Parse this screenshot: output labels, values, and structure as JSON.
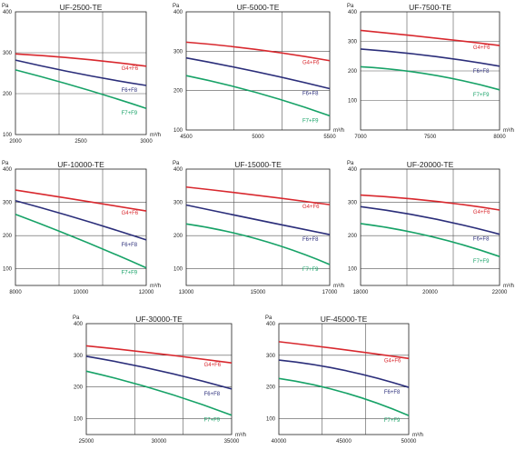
{
  "chart_data": [
    {
      "type": "line",
      "title": "UF-2500-TE",
      "ylabel": "Pa",
      "xlabel": "m³/h",
      "xlim": [
        2000,
        3000
      ],
      "ylim": [
        100,
        400
      ],
      "xticks": [
        2000,
        2500,
        3000
      ],
      "yticks": [
        100,
        200,
        300,
        400
      ],
      "grid": true,
      "series": [
        {
          "name": "G4+F6",
          "color": "#d8282e",
          "x": [
            2000,
            2500,
            3000
          ],
          "y": [
            297,
            285,
            267
          ]
        },
        {
          "name": "F6+F8",
          "color": "#2b2e7a",
          "x": [
            2000,
            2500,
            3000
          ],
          "y": [
            282,
            248,
            220
          ]
        },
        {
          "name": "F7+F9",
          "color": "#17a267",
          "x": [
            2000,
            2500,
            3000
          ],
          "y": [
            258,
            214,
            164
          ]
        }
      ]
    },
    {
      "type": "line",
      "title": "UF-5000-TE",
      "ylabel": "Pa",
      "xlabel": "m³/h",
      "xlim": [
        4500,
        5500
      ],
      "ylim": [
        100,
        400
      ],
      "xticks": [
        4500,
        5000,
        5500
      ],
      "yticks": [
        100,
        200,
        300,
        400
      ],
      "grid": true,
      "series": [
        {
          "name": "G4+F6",
          "color": "#d8282e",
          "x": [
            4500,
            5000,
            5500
          ],
          "y": [
            323,
            304,
            276
          ]
        },
        {
          "name": "F6+F8",
          "color": "#2b2e7a",
          "x": [
            4500,
            5000,
            5500
          ],
          "y": [
            283,
            247,
            205
          ]
        },
        {
          "name": "F7+F9",
          "color": "#17a267",
          "x": [
            4500,
            5000,
            5500
          ],
          "y": [
            238,
            194,
            136
          ]
        }
      ]
    },
    {
      "type": "line",
      "title": "UF-7500-TE",
      "ylabel": "Pa",
      "xlabel": "m³/h",
      "xlim": [
        7000,
        8000
      ],
      "ylim": [
        0,
        400
      ],
      "xticks": [
        7000,
        7500,
        8000
      ],
      "yticks": [
        100,
        200,
        300,
        400
      ],
      "grid": true,
      "series": [
        {
          "name": "G4+F6",
          "color": "#d8282e",
          "x": [
            7000,
            7500,
            8000
          ],
          "y": [
            337,
            313,
            286
          ]
        },
        {
          "name": "F6+F8",
          "color": "#2b2e7a",
          "x": [
            7000,
            7500,
            8000
          ],
          "y": [
            274,
            251,
            216
          ]
        },
        {
          "name": "F7+F9",
          "color": "#17a267",
          "x": [
            7000,
            7500,
            8000
          ],
          "y": [
            214,
            188,
            136
          ]
        }
      ]
    },
    {
      "type": "line",
      "title": "UF-10000-TE",
      "ylabel": "Pa",
      "xlabel": "m³/h",
      "xlim": [
        8000,
        12000
      ],
      "ylim": [
        50,
        400
      ],
      "xticks": [
        8000,
        10000,
        12000
      ],
      "yticks": [
        100,
        200,
        300,
        400
      ],
      "grid": true,
      "series": [
        {
          "name": "G4+F6",
          "color": "#d8282e",
          "x": [
            8000,
            10000,
            12000
          ],
          "y": [
            337,
            306,
            274
          ]
        },
        {
          "name": "F6+F8",
          "color": "#2b2e7a",
          "x": [
            8000,
            10000,
            12000
          ],
          "y": [
            305,
            249,
            187
          ]
        },
        {
          "name": "F7+F9",
          "color": "#17a267",
          "x": [
            8000,
            10000,
            12000
          ],
          "y": [
            264,
            187,
            103
          ]
        }
      ]
    },
    {
      "type": "line",
      "title": "UF-15000-TE",
      "ylabel": "Pa",
      "xlabel": "m³/h",
      "xlim": [
        13000,
        17000
      ],
      "ylim": [
        50,
        400
      ],
      "xticks": [
        13000,
        15000,
        17000
      ],
      "yticks": [
        100,
        200,
        300,
        400
      ],
      "grid": true,
      "series": [
        {
          "name": "G4+F6",
          "color": "#d8282e",
          "x": [
            13000,
            15000,
            17000
          ],
          "y": [
            346,
            321,
            293
          ]
        },
        {
          "name": "F6+F8",
          "color": "#2b2e7a",
          "x": [
            13000,
            15000,
            17000
          ],
          "y": [
            292,
            247,
            203
          ]
        },
        {
          "name": "F7+F9",
          "color": "#17a267",
          "x": [
            13000,
            15000,
            17000
          ],
          "y": [
            235,
            189,
            113
          ]
        }
      ]
    },
    {
      "type": "line",
      "title": "UF-20000-TE",
      "ylabel": "Pa",
      "xlabel": "m³/h",
      "xlim": [
        18000,
        22000
      ],
      "ylim": [
        50,
        400
      ],
      "xticks": [
        18000,
        20000,
        22000
      ],
      "yticks": [
        100,
        200,
        300,
        400
      ],
      "grid": true,
      "series": [
        {
          "name": "G4+F6",
          "color": "#d8282e",
          "x": [
            18000,
            20000,
            22000
          ],
          "y": [
            322,
            305,
            277
          ]
        },
        {
          "name": "F6+F8",
          "color": "#2b2e7a",
          "x": [
            18000,
            20000,
            22000
          ],
          "y": [
            287,
            253,
            204
          ]
        },
        {
          "name": "F7+F9",
          "color": "#17a267",
          "x": [
            18000,
            20000,
            22000
          ],
          "y": [
            236,
            198,
            137
          ]
        }
      ]
    },
    {
      "type": "line",
      "title": "UF-30000-TE",
      "ylabel": "Pa",
      "xlabel": "m³/h",
      "xlim": [
        25000,
        35000
      ],
      "ylim": [
        50,
        400
      ],
      "xticks": [
        25000,
        30000,
        35000
      ],
      "yticks": [
        100,
        200,
        300,
        400
      ],
      "grid": true,
      "series": [
        {
          "name": "G4+F6",
          "color": "#d8282e",
          "x": [
            25000,
            30000,
            35000
          ],
          "y": [
            330,
            305,
            276
          ]
        },
        {
          "name": "F6+F8",
          "color": "#2b2e7a",
          "x": [
            25000,
            30000,
            35000
          ],
          "y": [
            297,
            252,
            194
          ]
        },
        {
          "name": "F7+F9",
          "color": "#17a267",
          "x": [
            25000,
            30000,
            35000
          ],
          "y": [
            250,
            189,
            111
          ]
        }
      ]
    },
    {
      "type": "line",
      "title": "UF-45000-TE",
      "ylabel": "Pa",
      "xlabel": "m³/h",
      "xlim": [
        40000,
        50000
      ],
      "ylim": [
        50,
        400
      ],
      "xticks": [
        40000,
        45000,
        50000
      ],
      "yticks": [
        100,
        200,
        300,
        400
      ],
      "grid": true,
      "series": [
        {
          "name": "G4+F6",
          "color": "#d8282e",
          "x": [
            40000,
            45000,
            50000
          ],
          "y": [
            343,
            318,
            290
          ]
        },
        {
          "name": "F6+F8",
          "color": "#2b2e7a",
          "x": [
            40000,
            45000,
            50000
          ],
          "y": [
            285,
            253,
            199
          ]
        },
        {
          "name": "F7+F9",
          "color": "#17a267",
          "x": [
            40000,
            45000,
            50000
          ],
          "y": [
            227,
            183,
            110
          ]
        }
      ]
    }
  ]
}
